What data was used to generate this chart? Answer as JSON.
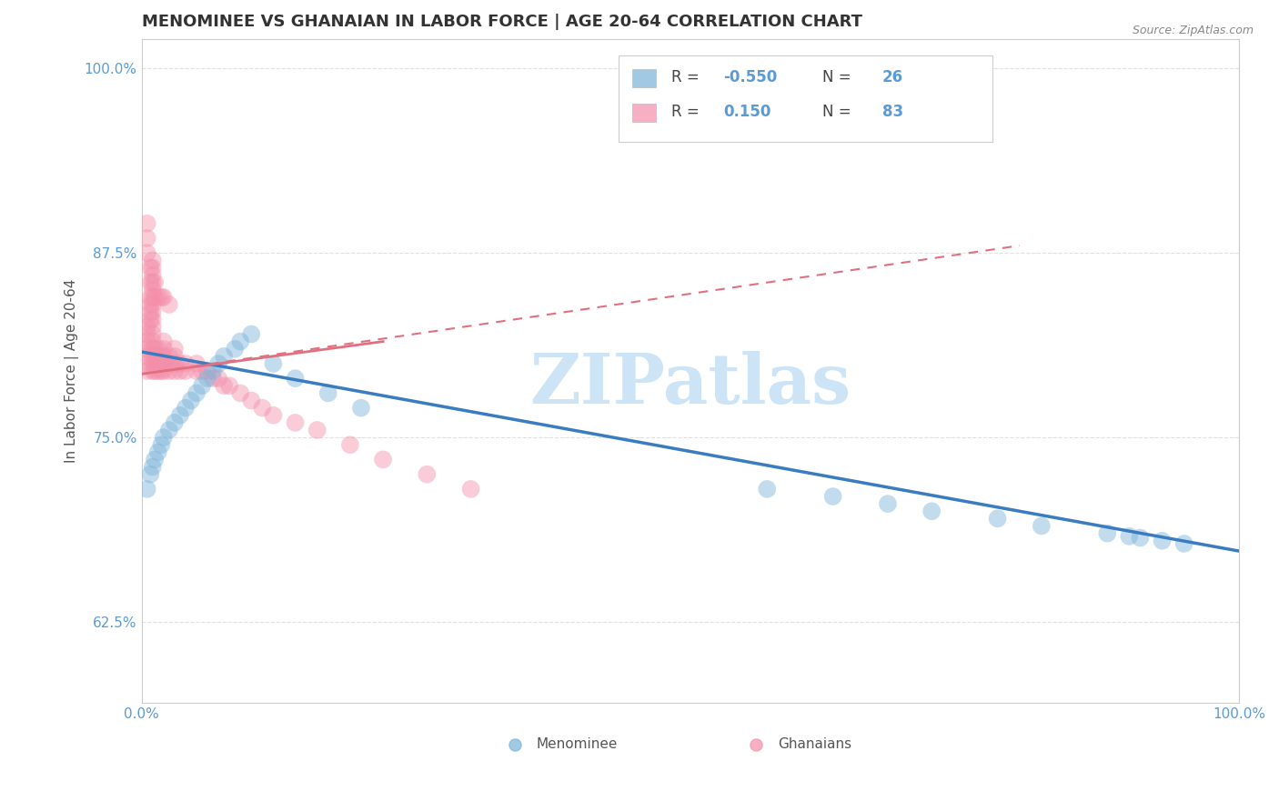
{
  "title": "MENOMINEE VS GHANAIAN IN LABOR FORCE | AGE 20-64 CORRELATION CHART",
  "source_text": "Source: ZipAtlas.com",
  "ylabel": "In Labor Force | Age 20-64",
  "xlim": [
    0.0,
    1.0
  ],
  "ylim": [
    0.57,
    1.02
  ],
  "yticks": [
    0.625,
    0.75,
    0.875,
    1.0
  ],
  "ytick_labels": [
    "62.5%",
    "75.0%",
    "87.5%",
    "100.0%"
  ],
  "xticks": [
    0.0,
    1.0
  ],
  "xtick_labels": [
    "0.0%",
    "100.0%"
  ],
  "watermark": "ZIPatlas",
  "watermark_color": "#cce4f5",
  "menominee_color": "#7bb3d9",
  "ghanaian_color": "#f48faa",
  "blue_line_color": "#3a7cc0",
  "pink_line_color": "#e07080",
  "background_color": "#ffffff",
  "grid_color": "#e0e0e0",
  "axis_color": "#cccccc",
  "title_fontsize": 13,
  "label_fontsize": 11,
  "menominee_x": [
    0.005,
    0.008,
    0.01,
    0.012,
    0.015,
    0.018,
    0.02,
    0.025,
    0.03,
    0.035,
    0.04,
    0.045,
    0.05,
    0.055,
    0.06,
    0.065,
    0.07,
    0.075,
    0.085,
    0.09,
    0.1,
    0.12,
    0.14,
    0.17,
    0.2,
    0.57,
    0.63,
    0.68,
    0.72,
    0.78,
    0.82,
    0.88,
    0.9,
    0.91,
    0.93,
    0.95
  ],
  "menominee_y": [
    0.715,
    0.725,
    0.73,
    0.735,
    0.74,
    0.745,
    0.75,
    0.755,
    0.76,
    0.765,
    0.77,
    0.775,
    0.78,
    0.785,
    0.79,
    0.795,
    0.8,
    0.805,
    0.81,
    0.815,
    0.82,
    0.8,
    0.79,
    0.78,
    0.77,
    0.715,
    0.71,
    0.705,
    0.7,
    0.695,
    0.69,
    0.685,
    0.683,
    0.682,
    0.68,
    0.678
  ],
  "ghanaian_x": [
    0.005,
    0.005,
    0.005,
    0.005,
    0.005,
    0.005,
    0.005,
    0.008,
    0.008,
    0.008,
    0.01,
    0.01,
    0.01,
    0.01,
    0.01,
    0.01,
    0.01,
    0.01,
    0.01,
    0.01,
    0.012,
    0.012,
    0.012,
    0.012,
    0.015,
    0.015,
    0.015,
    0.015,
    0.018,
    0.018,
    0.018,
    0.02,
    0.02,
    0.02,
    0.02,
    0.02,
    0.025,
    0.025,
    0.025,
    0.03,
    0.03,
    0.03,
    0.03,
    0.035,
    0.035,
    0.04,
    0.04,
    0.05,
    0.05,
    0.055,
    0.06,
    0.065,
    0.07,
    0.075,
    0.08,
    0.09,
    0.1,
    0.11,
    0.12,
    0.14,
    0.16,
    0.19,
    0.22,
    0.26,
    0.3,
    0.01,
    0.01,
    0.01,
    0.01,
    0.01,
    0.01,
    0.005,
    0.005,
    0.005,
    0.008,
    0.008,
    0.008,
    0.012,
    0.012,
    0.015,
    0.018,
    0.02,
    0.025
  ],
  "ghanaian_y": [
    0.795,
    0.8,
    0.805,
    0.81,
    0.815,
    0.82,
    0.825,
    0.83,
    0.835,
    0.84,
    0.795,
    0.8,
    0.805,
    0.81,
    0.815,
    0.82,
    0.825,
    0.83,
    0.835,
    0.84,
    0.795,
    0.8,
    0.805,
    0.81,
    0.795,
    0.8,
    0.805,
    0.81,
    0.795,
    0.8,
    0.805,
    0.795,
    0.8,
    0.805,
    0.81,
    0.815,
    0.795,
    0.8,
    0.805,
    0.795,
    0.8,
    0.805,
    0.81,
    0.795,
    0.8,
    0.795,
    0.8,
    0.795,
    0.8,
    0.795,
    0.795,
    0.79,
    0.79,
    0.785,
    0.785,
    0.78,
    0.775,
    0.77,
    0.765,
    0.76,
    0.755,
    0.745,
    0.735,
    0.725,
    0.715,
    0.845,
    0.85,
    0.855,
    0.86,
    0.865,
    0.87,
    0.875,
    0.885,
    0.895,
    0.845,
    0.855,
    0.865,
    0.845,
    0.855,
    0.845,
    0.845,
    0.845,
    0.84
  ],
  "blue_line_x": [
    0.0,
    1.0
  ],
  "blue_line_y": [
    0.808,
    0.673
  ],
  "pink_line_x": [
    0.0,
    0.8
  ],
  "pink_line_y": [
    0.793,
    0.88
  ]
}
